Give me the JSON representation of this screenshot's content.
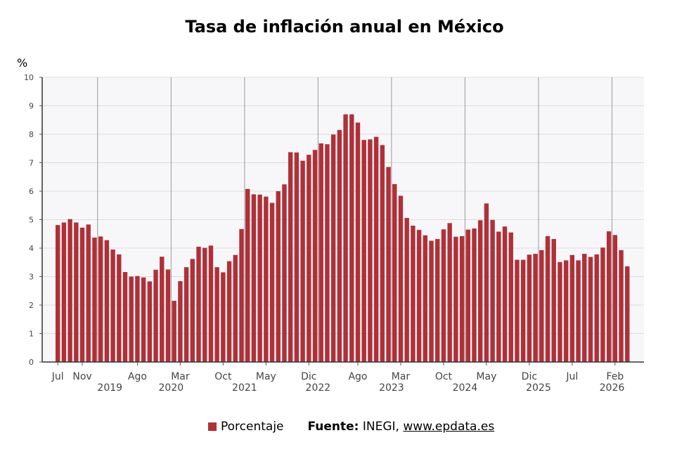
{
  "chart_data": {
    "type": "bar",
    "title": "Tasa de inflación anual en México",
    "ylabel": "%",
    "ylim": [
      0,
      10
    ],
    "yticks": [
      0,
      1,
      2,
      3,
      4,
      5,
      6,
      7,
      8,
      9,
      10
    ],
    "grid": true,
    "series": [
      {
        "name": "Porcentaje",
        "color": "#b03038",
        "values": [
          4.81,
          4.9,
          5.02,
          4.9,
          4.72,
          4.83,
          4.37,
          4.41,
          4.28,
          3.95,
          3.78,
          3.16,
          3.0,
          3.02,
          2.97,
          2.83,
          3.24,
          3.7,
          3.25,
          2.15,
          2.84,
          3.33,
          3.62,
          4.05,
          4.01,
          4.09,
          3.33,
          3.15,
          3.54,
          3.76,
          4.67,
          6.08,
          5.89,
          5.88,
          5.81,
          5.59,
          6.0,
          6.24,
          7.37,
          7.36,
          7.07,
          7.28,
          7.45,
          7.68,
          7.65,
          7.99,
          8.15,
          8.7,
          8.7,
          8.41,
          7.8,
          7.82,
          7.91,
          7.62,
          6.85,
          6.25,
          5.84,
          5.06,
          4.79,
          4.64,
          4.45,
          4.26,
          4.32,
          4.66,
          4.88,
          4.4,
          4.42,
          4.65,
          4.69,
          4.98,
          5.57,
          4.99,
          4.58,
          4.76,
          4.55,
          3.59,
          3.59,
          3.77,
          3.8,
          3.93,
          4.42,
          4.32,
          3.51,
          3.57,
          3.76,
          3.57,
          3.8,
          3.69,
          3.78,
          4.02,
          4.59,
          4.46,
          3.93,
          3.36
        ]
      }
    ],
    "x_tick_labels": [
      {
        "bar": 0,
        "label": "Jul"
      },
      {
        "bar": 4,
        "label": "Nov"
      },
      {
        "bar": 13,
        "label": "Ago"
      },
      {
        "bar": 20,
        "label": "Mar"
      },
      {
        "bar": 27,
        "label": "Oct"
      },
      {
        "bar": 34,
        "label": "May"
      },
      {
        "bar": 41,
        "label": "Dic"
      },
      {
        "bar": 49,
        "label": "Ago"
      },
      {
        "bar": 56,
        "label": "Mar"
      },
      {
        "bar": 63,
        "label": "Oct"
      },
      {
        "bar": 70,
        "label": "May"
      },
      {
        "bar": 77,
        "label": "Dic"
      },
      {
        "bar": 84,
        "label": "Jul"
      },
      {
        "bar": 91,
        "label": "Feb"
      }
    ],
    "year_labels": [
      {
        "bar": 8.5,
        "label": "2019"
      },
      {
        "bar": 18.5,
        "label": "2020"
      },
      {
        "bar": 30.5,
        "label": "2021"
      },
      {
        "bar": 42.5,
        "label": "2022"
      },
      {
        "bar": 54.5,
        "label": "2023"
      },
      {
        "bar": 66.5,
        "label": "2024"
      },
      {
        "bar": 78.5,
        "label": "2025"
      },
      {
        "bar": 90.5,
        "label": "2026"
      }
    ],
    "year_dividers": [
      6.5,
      18.5,
      30.5,
      42.5,
      54.5,
      66.5,
      78.5,
      90.5
    ],
    "legend": {
      "placement": "bottom",
      "label": "Porcentaje"
    }
  },
  "source": {
    "label": "Fuente:",
    "text": "INEGI,",
    "link": "www.epdata.es"
  }
}
